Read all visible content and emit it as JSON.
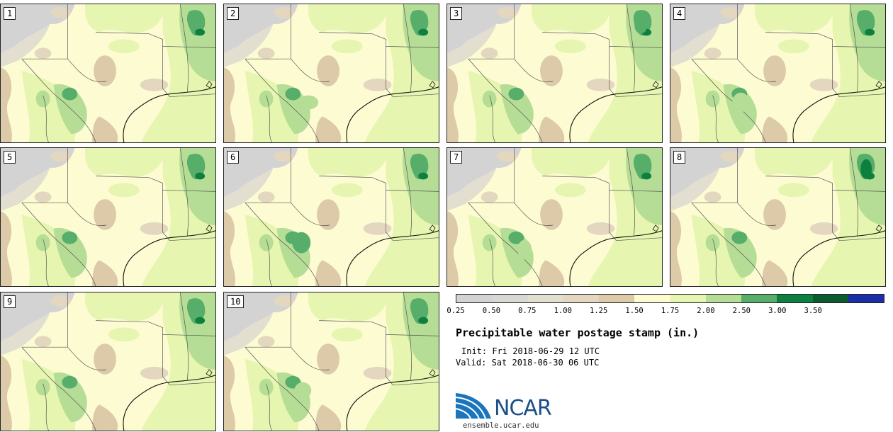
{
  "panels": [
    {
      "label": "1"
    },
    {
      "label": "2"
    },
    {
      "label": "3"
    },
    {
      "label": "4"
    },
    {
      "label": "5"
    },
    {
      "label": "6"
    },
    {
      "label": "7"
    },
    {
      "label": "8"
    },
    {
      "label": "9"
    },
    {
      "label": "10"
    }
  ],
  "colorbar": {
    "colors": [
      "#d3d3d3",
      "#d8d8d2",
      "#e2ded0",
      "#e4d7bf",
      "#dccaa8",
      "#fdfbd2",
      "#e6f5b0",
      "#b6dd96",
      "#56ae6a",
      "#0d8040",
      "#0b5b2e",
      "#1a2ea8"
    ],
    "ticks": [
      "0.25",
      "0.50",
      "0.75",
      "1.00",
      "1.25",
      "1.50",
      "1.75",
      "2.00",
      "2.50",
      "3.00",
      "3.50"
    ]
  },
  "title": "Precipitable water postage stamp (in.)",
  "init": "Init: Fri 2018-06-29 12 UTC",
  "valid": "Valid: Sat 2018-06-30 06 UTC",
  "logo": {
    "text": "NCAR",
    "website": "ensemble.ucar.edu"
  }
}
